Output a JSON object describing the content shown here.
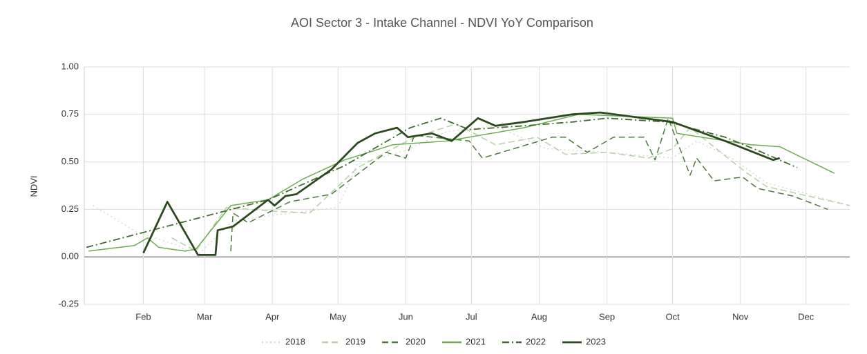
{
  "chart_data": {
    "type": "line",
    "title": "AOI Sector 3 - Intake Channel - NDVI YoY Comparison",
    "y_label": "NDVI",
    "xlim": [
      5,
      355
    ],
    "xticks": [
      {
        "value": 32,
        "label": "Feb"
      },
      {
        "value": 60,
        "label": "Mar"
      },
      {
        "value": 91,
        "label": "Apr"
      },
      {
        "value": 121,
        "label": "May"
      },
      {
        "value": 152,
        "label": "Jun"
      },
      {
        "value": 182,
        "label": "Jul"
      },
      {
        "value": 213,
        "label": "Aug"
      },
      {
        "value": 244,
        "label": "Sep"
      },
      {
        "value": 274,
        "label": "Oct"
      },
      {
        "value": 305,
        "label": "Nov"
      },
      {
        "value": 335,
        "label": "Dec"
      }
    ],
    "ylim": [
      -0.25,
      1.0
    ],
    "yticks": [
      {
        "value": -0.25,
        "label": "-0.25"
      },
      {
        "value": 0,
        "label": "0.00"
      },
      {
        "value": 0.25,
        "label": "0.25"
      },
      {
        "value": 0.5,
        "label": "0.50"
      },
      {
        "value": 0.75,
        "label": "0.75"
      },
      {
        "value": 1.0,
        "label": "1.00"
      }
    ],
    "grid": true,
    "legend": "bottom",
    "series": [
      {
        "name": "2018",
        "color": "#d3dbcf",
        "dash": "dotted",
        "line_width": 1.5,
        "x": [
          9,
          29,
          48,
          56,
          73,
          99,
          121,
          130,
          152,
          171,
          193,
          216,
          244,
          274,
          285,
          301,
          317,
          355
        ],
        "values": [
          0.27,
          0.13,
          0.06,
          0.0,
          0.19,
          0.23,
          0.26,
          0.49,
          0.56,
          0.66,
          0.69,
          0.57,
          0.55,
          0.52,
          0.61,
          0.52,
          0.39,
          0.27
        ]
      },
      {
        "name": "2019",
        "color": "#b2d0a4",
        "dash": "dashed",
        "line_width": 1.5,
        "x": [
          45,
          56,
          70,
          92,
          108,
          130,
          156,
          175,
          193,
          212,
          225,
          244,
          263,
          274,
          282,
          307,
          317,
          355
        ],
        "values": [
          0.1,
          0.03,
          0.26,
          0.24,
          0.23,
          0.47,
          0.63,
          0.7,
          0.59,
          0.63,
          0.54,
          0.55,
          0.52,
          0.57,
          0.68,
          0.45,
          0.37,
          0.27
        ]
      },
      {
        "name": "2020",
        "color": "#4a7a3a",
        "dash": "dashed",
        "line_width": 1.5,
        "x": [
          72,
          73,
          80,
          99,
          118,
          143,
          152,
          156,
          181,
          187,
          219,
          225,
          235,
          247,
          261,
          266,
          272,
          282,
          285,
          293,
          306,
          313,
          329,
          345
        ],
        "values": [
          0.03,
          0.23,
          0.18,
          0.29,
          0.33,
          0.55,
          0.52,
          0.64,
          0.61,
          0.52,
          0.63,
          0.63,
          0.55,
          0.63,
          0.63,
          0.51,
          0.73,
          0.43,
          0.52,
          0.4,
          0.42,
          0.36,
          0.32,
          0.25
        ]
      },
      {
        "name": "2021",
        "color": "#6aad4e",
        "dash": "solid",
        "line_width": 1.5,
        "x": [
          7,
          28,
          34,
          39,
          51,
          56,
          72,
          89,
          105,
          124,
          146,
          171,
          206,
          231,
          274,
          276,
          310,
          323,
          348
        ],
        "values": [
          0.03,
          0.06,
          0.1,
          0.05,
          0.03,
          0.04,
          0.27,
          0.3,
          0.41,
          0.51,
          0.59,
          0.61,
          0.68,
          0.75,
          0.73,
          0.65,
          0.59,
          0.58,
          0.44
        ]
      },
      {
        "name": "2022",
        "color": "#3d6b2e",
        "dash": "dashdot",
        "line_width": 1.8,
        "x": [
          6,
          89,
          124,
          154,
          168,
          181,
          206,
          228,
          244,
          272,
          298,
          313,
          331
        ],
        "values": [
          0.05,
          0.3,
          0.48,
          0.68,
          0.73,
          0.67,
          0.69,
          0.71,
          0.73,
          0.71,
          0.63,
          0.56,
          0.47
        ]
      },
      {
        "name": "2023",
        "color": "#2b4a20",
        "dash": "solid",
        "line_width": 2.8,
        "x": [
          32,
          43,
          57,
          65,
          66,
          73,
          89,
          92,
          97,
          102,
          118,
          130,
          138,
          148,
          153,
          164,
          173,
          185,
          193,
          206,
          228,
          241,
          274,
          298,
          320,
          323
        ],
        "values": [
          0.02,
          0.29,
          0.01,
          0.01,
          0.14,
          0.16,
          0.3,
          0.27,
          0.32,
          0.33,
          0.46,
          0.6,
          0.65,
          0.68,
          0.63,
          0.65,
          0.61,
          0.73,
          0.69,
          0.71,
          0.75,
          0.76,
          0.71,
          0.61,
          0.51,
          0.52
        ]
      }
    ]
  }
}
